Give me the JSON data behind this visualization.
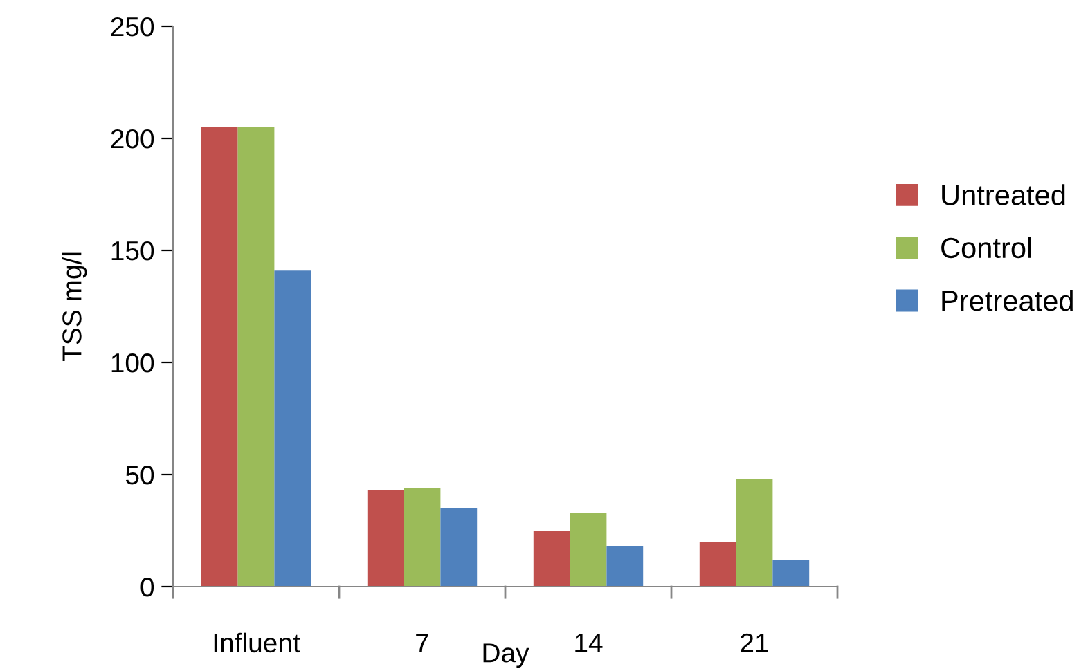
{
  "chart_data": {
    "type": "bar",
    "xlabel": "Day",
    "ylabel": "TSS mg/l",
    "categories": [
      "Influent",
      "7",
      "14",
      "21"
    ],
    "series": [
      {
        "name": "Untreated",
        "color": "#c0504d",
        "values": [
          205,
          43,
          25,
          20
        ]
      },
      {
        "name": "Control",
        "color": "#9bbb59",
        "values": [
          205,
          44,
          33,
          48
        ]
      },
      {
        "name": "Pretreated",
        "color": "#4f81bd",
        "values": [
          141,
          35,
          18,
          12
        ]
      }
    ],
    "ylim": [
      0,
      250
    ],
    "yticks": [
      0,
      50,
      100,
      150,
      200,
      250
    ],
    "grid": false,
    "legend": "right"
  }
}
